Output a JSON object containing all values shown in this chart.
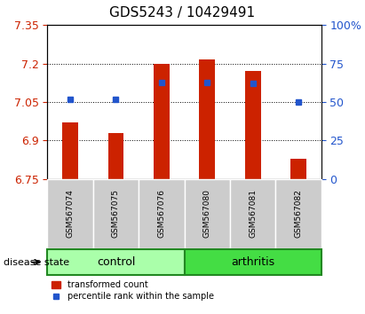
{
  "title": "GDS5243 / 10429491",
  "samples": [
    "GSM567074",
    "GSM567075",
    "GSM567076",
    "GSM567080",
    "GSM567081",
    "GSM567082"
  ],
  "bar_values": [
    6.97,
    6.93,
    7.2,
    7.215,
    7.17,
    6.83
  ],
  "bar_bottom": 6.75,
  "percentile_values": [
    52,
    52,
    63,
    63,
    62,
    50
  ],
  "ylim_left": [
    6.75,
    7.35
  ],
  "ylim_right": [
    0,
    100
  ],
  "yticks_left": [
    6.75,
    6.9,
    7.05,
    7.2,
    7.35
  ],
  "yticks_right": [
    0,
    25,
    50,
    75,
    100
  ],
  "ytick_labels_left": [
    "6.75",
    "6.9",
    "7.05",
    "7.2",
    "7.35"
  ],
  "ytick_labels_right": [
    "0",
    "25",
    "50",
    "75",
    "100%"
  ],
  "bar_color": "#cc2200",
  "dot_color": "#2255cc",
  "groups": [
    {
      "label": "control",
      "indices": [
        0,
        1,
        2
      ],
      "color": "#aaffaa"
    },
    {
      "label": "arthritis",
      "indices": [
        3,
        4,
        5
      ],
      "color": "#44dd44"
    }
  ],
  "disease_state_label": "disease state",
  "legend_bar_label": "transformed count",
  "legend_dot_label": "percentile rank within the sample",
  "grid_color": "#000000",
  "bg_plot": "#ffffff",
  "bg_xticklabels": "#cccccc",
  "title_fontsize": 11,
  "tick_fontsize": 9,
  "label_fontsize": 9
}
